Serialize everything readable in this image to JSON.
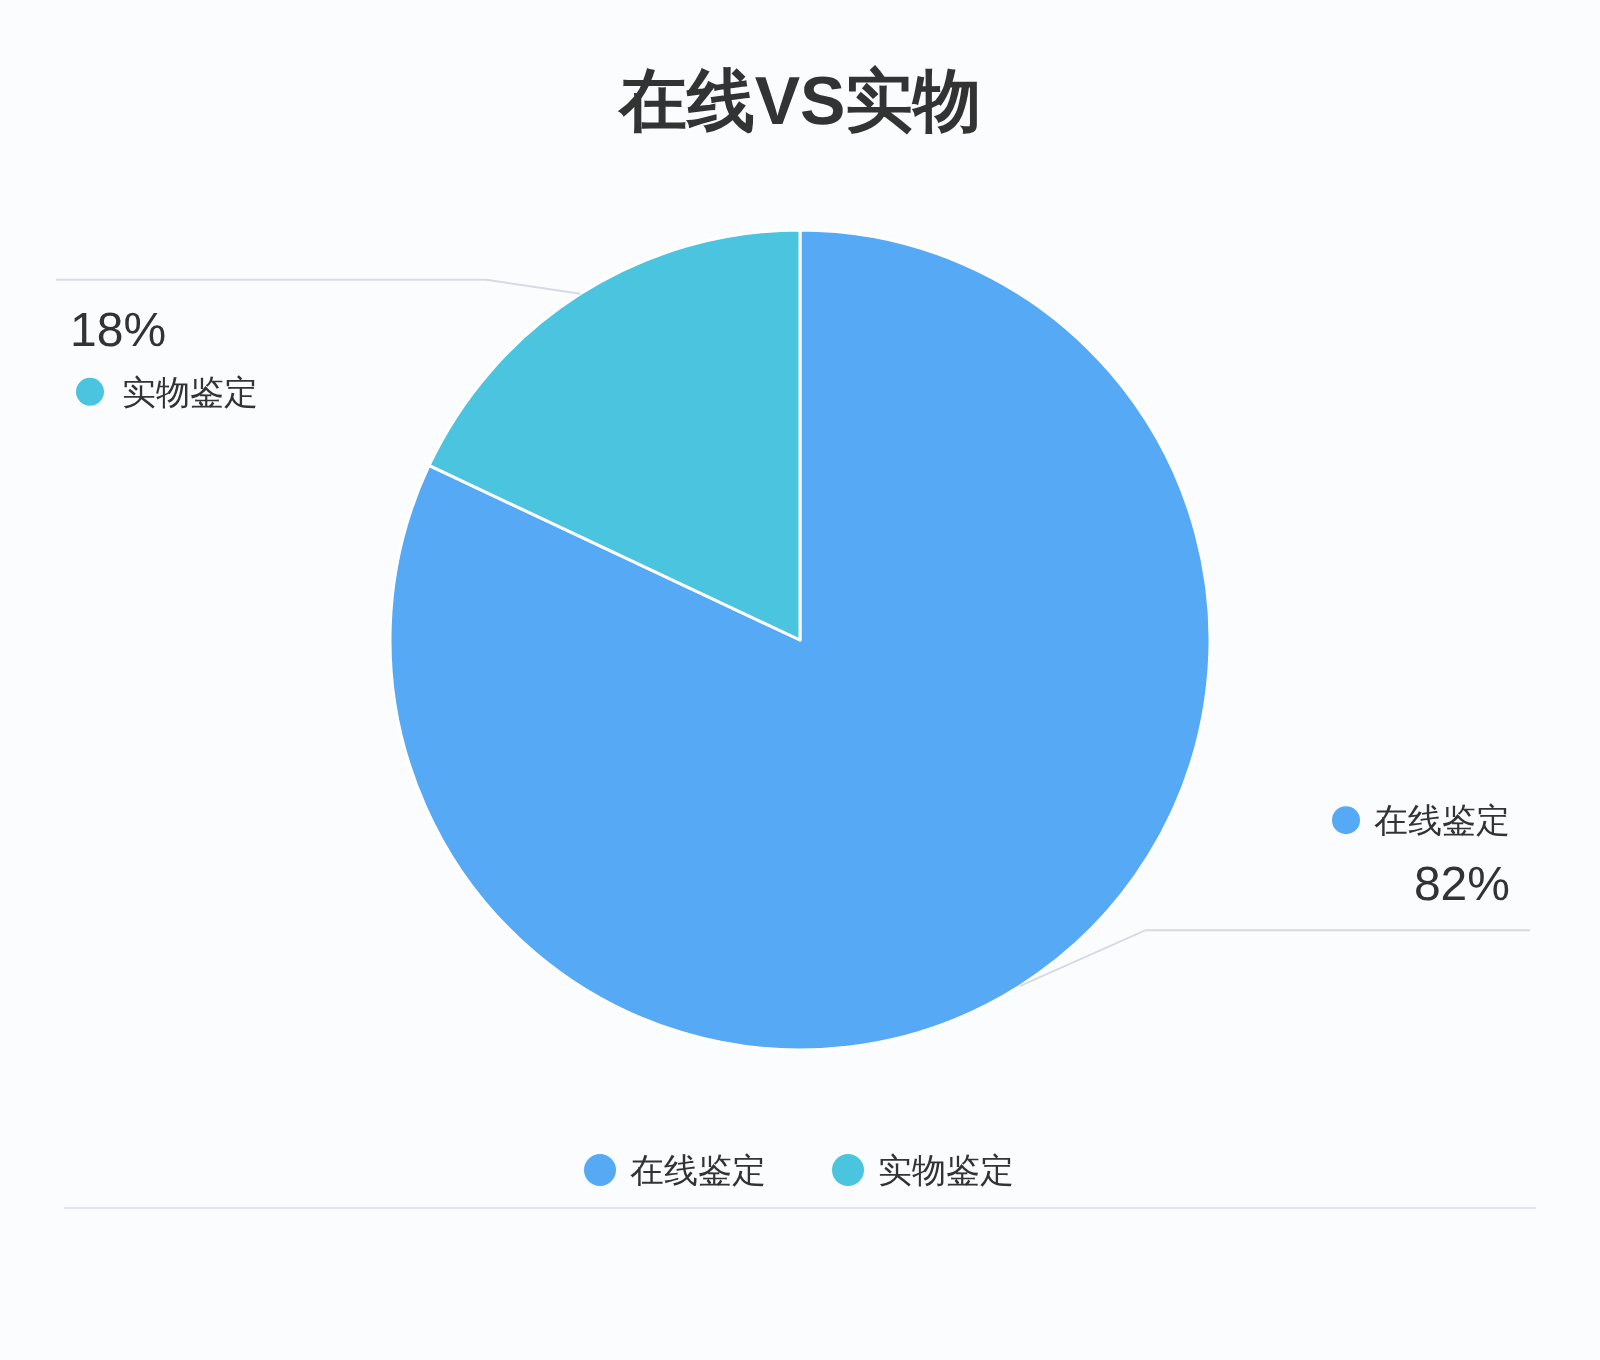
{
  "chart_data": {
    "type": "pie",
    "title": "在线VS实物",
    "categories": [
      "在线鉴定",
      "实物鉴定"
    ],
    "values": [
      82,
      18
    ],
    "colors": [
      "#56a9f5",
      "#4ac4df"
    ],
    "value_labels": [
      "82%",
      "18%"
    ],
    "legend": "bottom"
  }
}
